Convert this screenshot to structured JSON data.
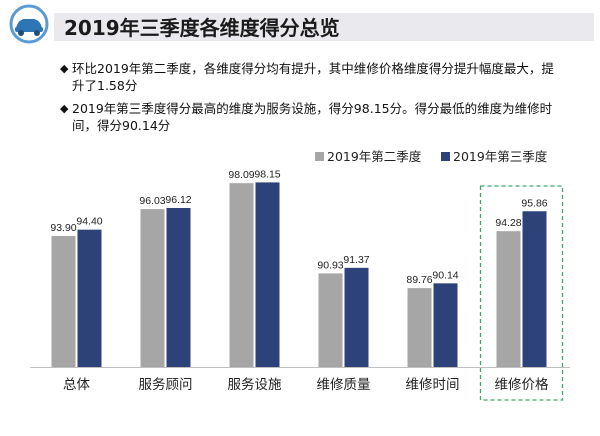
{
  "header": {
    "title": "2019年三季度各维度得分总览"
  },
  "bullets": [
    {
      "mark": "◆",
      "text": "环比2019年第二季度，各维度得分均有提升，其中维修价格维度得分提升幅度最大，提升了1.58分"
    },
    {
      "mark": "◆",
      "text": "2019年第三季度得分最高的维度为服务设施，得分98.15分。得分最低的维度为维修时间，得分90.14分"
    }
  ],
  "colors": {
    "series_q2": "#a6a6a6",
    "series_q3": "#2c4279",
    "highlight_border": "#3aaa6a",
    "axis": "#bfbfbf"
  },
  "chart_data": {
    "type": "bar",
    "categories": [
      "总体",
      "服务顾问",
      "服务设施",
      "维修质量",
      "维修时间",
      "维修价格"
    ],
    "series": [
      {
        "name": "2019年第二季度",
        "values": [
          93.9,
          96.03,
          98.09,
          90.93,
          89.76,
          94.28
        ],
        "labels": [
          "93.90",
          "96.03",
          "98.09",
          "90.93",
          "89.76",
          "94.28"
        ]
      },
      {
        "name": "2019年第三季度",
        "values": [
          94.4,
          96.12,
          98.15,
          91.37,
          90.14,
          95.86
        ],
        "labels": [
          "94.40",
          "96.12",
          "98.15",
          "91.37",
          "90.14",
          "95.86"
        ]
      }
    ],
    "ylim": [
      83.5,
      98.5
    ],
    "highlighted_category": "维修价格",
    "legend_position": "top-right",
    "grid": false
  }
}
